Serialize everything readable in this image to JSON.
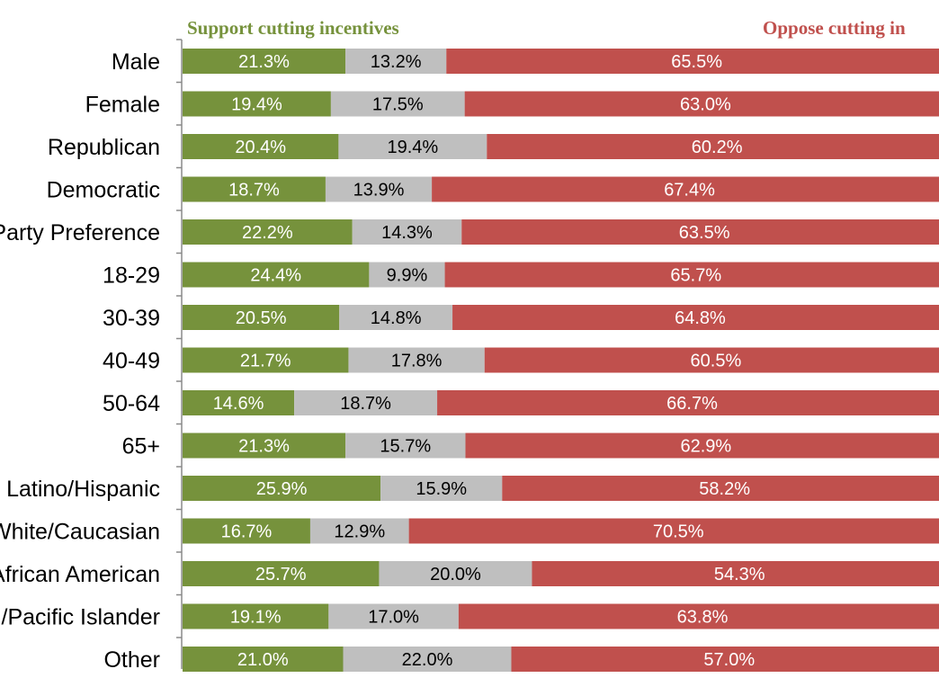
{
  "chart_data": {
    "type": "bar",
    "orientation": "horizontal",
    "stacked": true,
    "percent_stacked": true,
    "categories": [
      "Male",
      "Female",
      "Republican",
      "Democratic",
      "No Party Preference",
      "18-29",
      "30-39",
      "40-49",
      "50-64",
      "65+",
      "Latino/Hispanic",
      "White/Caucasian",
      "African American",
      "Asian/Pacific Islander",
      "Other"
    ],
    "series": [
      {
        "name": "Support cutting incentives",
        "color": "#76923c",
        "label_color": "#ffffff",
        "values": [
          21.3,
          19.4,
          20.4,
          18.7,
          22.2,
          24.4,
          20.5,
          21.7,
          14.6,
          21.3,
          25.9,
          16.7,
          25.7,
          19.1,
          21.0
        ],
        "labels": [
          "21.3%",
          "19.4%",
          "20.4%",
          "18.7%",
          "22.2%",
          "24.4%",
          "20.5%",
          "21.7%",
          "14.6%",
          "21.3%",
          "25.9%",
          "16.7%",
          "25.7%",
          "19.1%",
          "21.0%"
        ]
      },
      {
        "color": "#bfbfbf",
        "label_color": "#000000",
        "values": [
          13.2,
          17.5,
          19.4,
          13.9,
          14.3,
          9.9,
          14.8,
          17.8,
          18.7,
          15.7,
          15.9,
          12.9,
          20.0,
          17.0,
          22.0
        ],
        "labels": [
          "13.2%",
          "17.5%",
          "19.4%",
          "13.9%",
          "14.3%",
          "9.9%",
          "14.8%",
          "17.8%",
          "18.7%",
          "15.7%",
          "15.9%",
          "12.9%",
          "20.0%",
          "17.0%",
          "22.0%"
        ]
      },
      {
        "name": "Oppose cutting in",
        "color": "#c0504d",
        "label_color": "#ffffff",
        "values": [
          65.5,
          63.0,
          60.2,
          67.4,
          63.5,
          65.7,
          64.8,
          60.5,
          66.7,
          62.9,
          58.2,
          70.5,
          54.3,
          63.8,
          57.0
        ],
        "labels": [
          "65.5%",
          "63.0%",
          "60.2%",
          "67.4%",
          "63.5%",
          "65.7%",
          "64.8%",
          "60.5%",
          "66.7%",
          "62.9%",
          "58.2%",
          "70.5%",
          "54.3%",
          "63.8%",
          "57.0%"
        ]
      }
    ],
    "xlim": [
      0,
      100
    ],
    "grid": false,
    "legend_position": "top"
  }
}
